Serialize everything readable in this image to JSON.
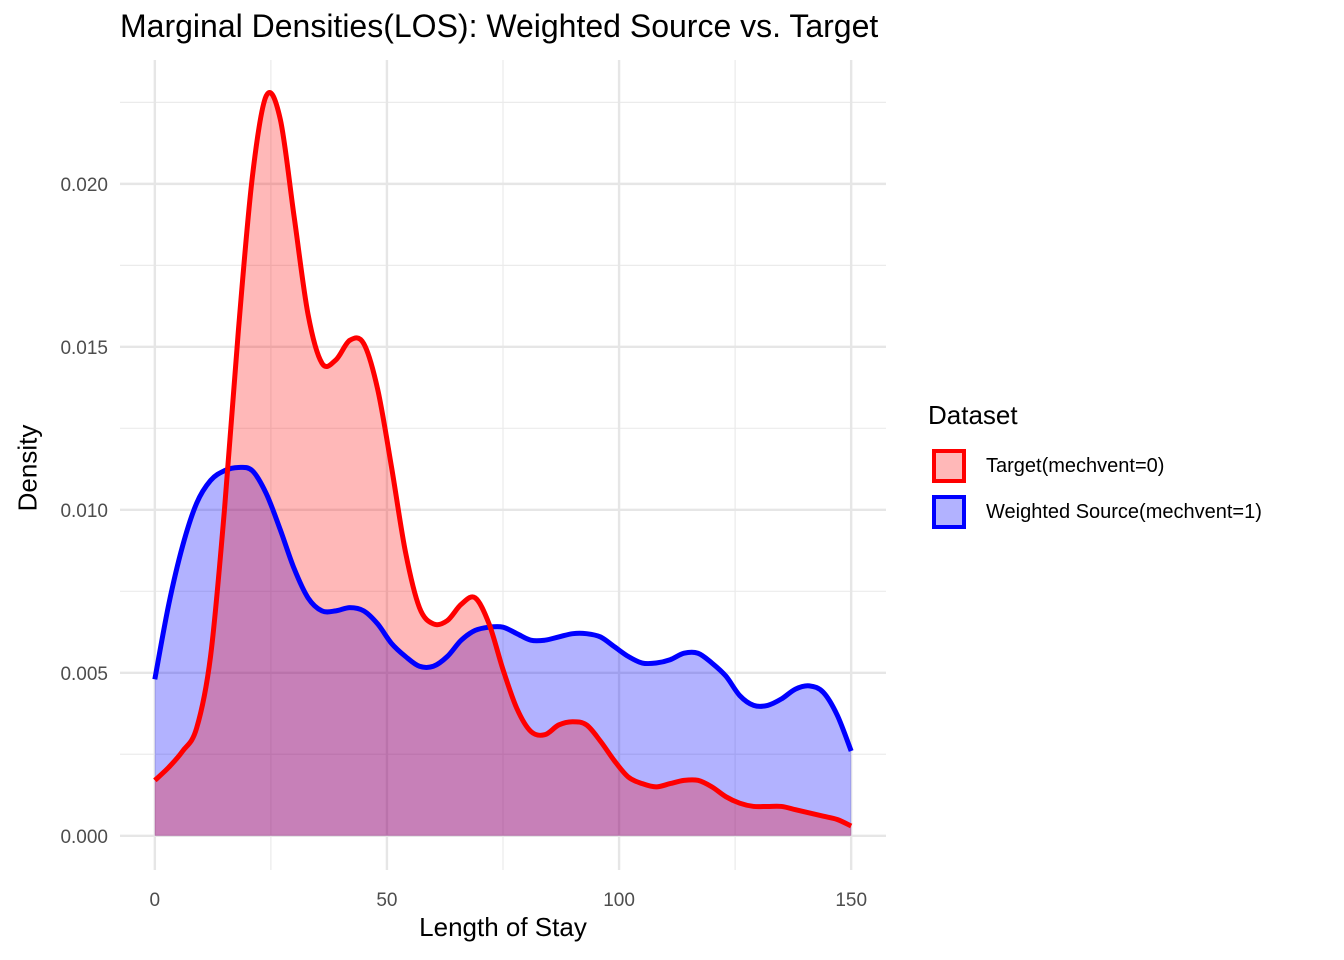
{
  "chart_data": {
    "type": "area",
    "title": "Marginal Densities(LOS): Weighted Source vs. Target",
    "xlabel": "Length of Stay",
    "ylabel": "Density",
    "xlim": [
      -7.5,
      157.5
    ],
    "ylim": [
      -0.00105,
      0.0238
    ],
    "x_ticks": [
      0,
      50,
      100,
      150
    ],
    "x_tick_labels": [
      "0",
      "50",
      "100",
      "150"
    ],
    "y_ticks": [
      0.0,
      0.005,
      0.01,
      0.015,
      0.02
    ],
    "y_tick_labels": [
      "0.000",
      "0.005",
      "0.010",
      "0.015",
      "0.020"
    ],
    "grid": true,
    "legend": {
      "title": "Dataset",
      "placement": "right",
      "entries": [
        "Target(mechvent=0)",
        "Weighted Source(mechvent=1)"
      ]
    },
    "series": [
      {
        "name": "Weighted Source(mechvent=1)",
        "line_color": "#0000FF",
        "fill_color": "#0000FF",
        "fill_opacity": 0.3,
        "points": [
          [
            0,
            0.0048
          ],
          [
            3,
            0.0071
          ],
          [
            6,
            0.0089
          ],
          [
            9,
            0.0102
          ],
          [
            12,
            0.0109
          ],
          [
            15,
            0.0112
          ],
          [
            18,
            0.0113
          ],
          [
            21,
            0.0112
          ],
          [
            24,
            0.0105
          ],
          [
            27,
            0.0094
          ],
          [
            30,
            0.0082
          ],
          [
            33,
            0.0073
          ],
          [
            36,
            0.0069
          ],
          [
            39,
            0.0069
          ],
          [
            42,
            0.007
          ],
          [
            45,
            0.0069
          ],
          [
            48,
            0.0065
          ],
          [
            51,
            0.0059
          ],
          [
            54,
            0.0055
          ],
          [
            57,
            0.0052
          ],
          [
            60,
            0.0052
          ],
          [
            63,
            0.0055
          ],
          [
            66,
            0.006
          ],
          [
            69,
            0.0063
          ],
          [
            72,
            0.0064
          ],
          [
            75,
            0.0064
          ],
          [
            78,
            0.0062
          ],
          [
            81,
            0.006
          ],
          [
            84,
            0.006
          ],
          [
            87,
            0.0061
          ],
          [
            90,
            0.0062
          ],
          [
            93,
            0.0062
          ],
          [
            96,
            0.0061
          ],
          [
            99,
            0.0058
          ],
          [
            102,
            0.0055
          ],
          [
            105,
            0.0053
          ],
          [
            108,
            0.0053
          ],
          [
            111,
            0.0054
          ],
          [
            114,
            0.0056
          ],
          [
            117,
            0.0056
          ],
          [
            120,
            0.0053
          ],
          [
            123,
            0.0049
          ],
          [
            126,
            0.0043
          ],
          [
            129,
            0.004
          ],
          [
            132,
            0.004
          ],
          [
            135,
            0.0042
          ],
          [
            138,
            0.0045
          ],
          [
            141,
            0.0046
          ],
          [
            144,
            0.0044
          ],
          [
            147,
            0.0037
          ],
          [
            150,
            0.0026
          ]
        ]
      },
      {
        "name": "Target(mechvent=0)",
        "line_color": "#FF0000",
        "fill_color": "#FF0000",
        "fill_opacity": 0.28,
        "points": [
          [
            0,
            0.0017
          ],
          [
            3,
            0.0021
          ],
          [
            6,
            0.0026
          ],
          [
            9,
            0.0033
          ],
          [
            12,
            0.0055
          ],
          [
            15,
            0.01
          ],
          [
            18,
            0.0155
          ],
          [
            21,
            0.0202
          ],
          [
            24,
            0.0227
          ],
          [
            27,
            0.022
          ],
          [
            30,
            0.019
          ],
          [
            33,
            0.016
          ],
          [
            36,
            0.0145
          ],
          [
            39,
            0.0146
          ],
          [
            42,
            0.0152
          ],
          [
            45,
            0.0151
          ],
          [
            48,
            0.0137
          ],
          [
            51,
            0.0113
          ],
          [
            54,
            0.0087
          ],
          [
            57,
            0.007
          ],
          [
            60,
            0.0065
          ],
          [
            63,
            0.0066
          ],
          [
            66,
            0.0071
          ],
          [
            69,
            0.0073
          ],
          [
            72,
            0.0065
          ],
          [
            75,
            0.0051
          ],
          [
            78,
            0.0039
          ],
          [
            81,
            0.0032
          ],
          [
            84,
            0.0031
          ],
          [
            87,
            0.0034
          ],
          [
            90,
            0.0035
          ],
          [
            93,
            0.0034
          ],
          [
            96,
            0.0029
          ],
          [
            99,
            0.0023
          ],
          [
            102,
            0.0018
          ],
          [
            105,
            0.0016
          ],
          [
            108,
            0.0015
          ],
          [
            111,
            0.0016
          ],
          [
            114,
            0.0017
          ],
          [
            117,
            0.0017
          ],
          [
            120,
            0.0015
          ],
          [
            123,
            0.0012
          ],
          [
            126,
            0.001
          ],
          [
            129,
            0.0009
          ],
          [
            132,
            0.0009
          ],
          [
            135,
            0.0009
          ],
          [
            138,
            0.0008
          ],
          [
            141,
            0.0007
          ],
          [
            144,
            0.0006
          ],
          [
            147,
            0.0005
          ],
          [
            150,
            0.0003
          ]
        ]
      }
    ]
  }
}
